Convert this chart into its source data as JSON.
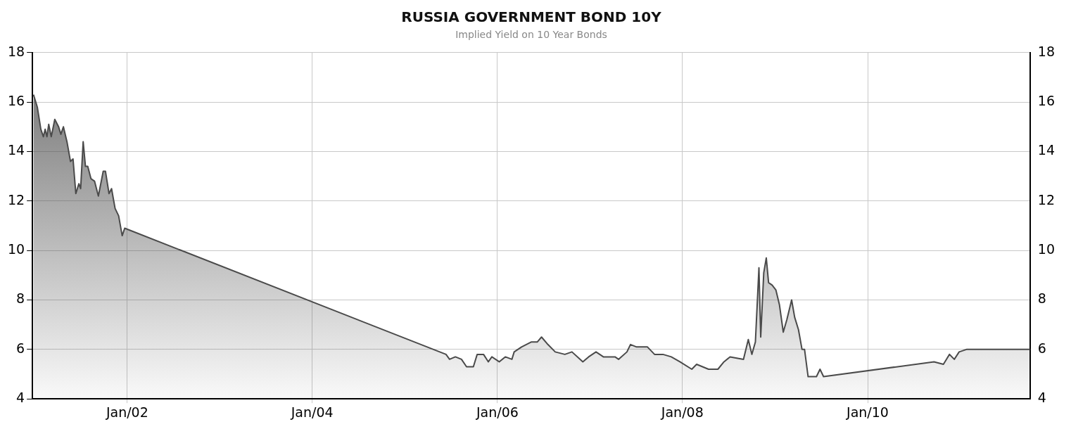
{
  "chart_data": {
    "type": "area",
    "title": "RUSSIA GOVERNMENT BOND 10Y",
    "subtitle": "Implied Yield on 10 Year Bonds",
    "x": [
      "2000-12-27",
      "2001-01-11",
      "2001-01-25",
      "2001-02-04",
      "2001-02-11",
      "2001-02-18",
      "2001-02-25",
      "2001-03-07",
      "2001-03-21",
      "2001-04-05",
      "2001-04-14",
      "2001-04-24",
      "2001-05-08",
      "2001-05-22",
      "2001-06-01",
      "2001-06-12",
      "2001-06-24",
      "2001-07-01",
      "2001-07-11",
      "2001-07-20",
      "2001-07-29",
      "2001-08-11",
      "2001-08-25",
      "2001-09-09",
      "2001-09-28",
      "2001-10-07",
      "2001-10-21",
      "2001-10-31",
      "2001-11-14",
      "2001-11-28",
      "2001-12-12",
      "2001-12-22",
      "2005-06-12",
      "2005-06-26",
      "2005-07-19",
      "2005-08-12",
      "2005-09-01",
      "2005-09-28",
      "2005-10-13",
      "2005-11-07",
      "2005-11-26",
      "2005-12-10",
      "2006-01-08",
      "2006-02-01",
      "2006-02-27",
      "2006-03-08",
      "2006-04-06",
      "2006-05-14",
      "2006-06-07",
      "2006-06-24",
      "2006-07-19",
      "2006-08-17",
      "2006-09-24",
      "2006-10-22",
      "2006-12-04",
      "2006-12-27",
      "2007-01-25",
      "2007-02-23",
      "2007-04-10",
      "2007-04-24",
      "2007-05-27",
      "2007-06-10",
      "2007-07-04",
      "2007-07-22",
      "2007-08-16",
      "2007-09-13",
      "2007-10-16",
      "2007-11-18",
      "2007-12-22",
      "2008-02-07",
      "2008-02-26",
      "2008-04-13",
      "2008-05-20",
      "2008-06-13",
      "2008-07-07",
      "2008-08-29",
      "2008-09-17",
      "2008-10-01",
      "2008-10-15",
      "2008-10-29",
      "2008-11-05",
      "2008-11-17",
      "2008-11-27",
      "2008-12-06",
      "2008-12-20",
      "2009-01-04",
      "2009-01-18",
      "2009-02-02",
      "2009-02-16",
      "2009-03-07",
      "2009-03-19",
      "2009-04-03",
      "2009-04-17",
      "2009-04-27",
      "2009-05-11",
      "2009-06-13",
      "2009-06-27",
      "2009-07-11",
      "2010-09-20",
      "2010-10-27",
      "2010-11-20",
      "2010-12-09",
      "2010-12-28",
      "2011-01-26",
      "2011-10-04"
    ],
    "series": [
      {
        "color": "#4a4a4a",
        "values": [
          16.3,
          15.8,
          14.9,
          14.6,
          14.9,
          14.6,
          15.1,
          14.6,
          15.3,
          15.0,
          14.7,
          15.0,
          14.4,
          13.6,
          13.7,
          12.3,
          12.7,
          12.5,
          14.4,
          13.4,
          13.4,
          12.9,
          12.8,
          12.2,
          13.2,
          13.2,
          12.3,
          12.5,
          11.7,
          11.4,
          10.6,
          10.9,
          5.8,
          5.6,
          5.7,
          5.6,
          5.3,
          5.3,
          5.8,
          5.8,
          5.5,
          5.7,
          5.5,
          5.7,
          5.6,
          5.9,
          6.1,
          6.3,
          6.3,
          6.5,
          6.2,
          5.9,
          5.8,
          5.9,
          5.5,
          5.7,
          5.9,
          5.7,
          5.7,
          5.6,
          5.9,
          6.2,
          6.1,
          6.1,
          6.1,
          5.8,
          5.8,
          5.7,
          5.5,
          5.2,
          5.4,
          5.2,
          5.2,
          5.5,
          5.7,
          5.6,
          6.4,
          5.8,
          6.3,
          9.3,
          6.5,
          9.1,
          9.7,
          8.7,
          8.6,
          8.4,
          7.8,
          6.7,
          7.2,
          8.0,
          7.3,
          6.8,
          6.0,
          6.0,
          4.9,
          4.9,
          5.2,
          4.9,
          5.5,
          5.4,
          5.8,
          5.6,
          5.9,
          6.0,
          6.0
        ]
      }
    ],
    "xlim": [
      "2000-12-23",
      "2011-10-04"
    ],
    "xticks": [
      {
        "value": "2002-01-01",
        "label": "Jan/02"
      },
      {
        "value": "2004-01-01",
        "label": "Jan/04"
      },
      {
        "value": "2006-01-01",
        "label": "Jan/06"
      },
      {
        "value": "2008-01-01",
        "label": "Jan/08"
      },
      {
        "value": "2010-01-01",
        "label": "Jan/10"
      }
    ],
    "ylim": [
      4,
      18
    ],
    "yticks": [
      4,
      6,
      8,
      10,
      12,
      14,
      16,
      18
    ],
    "y2lim": [
      4,
      18
    ],
    "y2ticks": [
      4,
      6,
      8,
      10,
      12,
      14,
      16,
      18
    ],
    "grid": true,
    "legend": false
  }
}
